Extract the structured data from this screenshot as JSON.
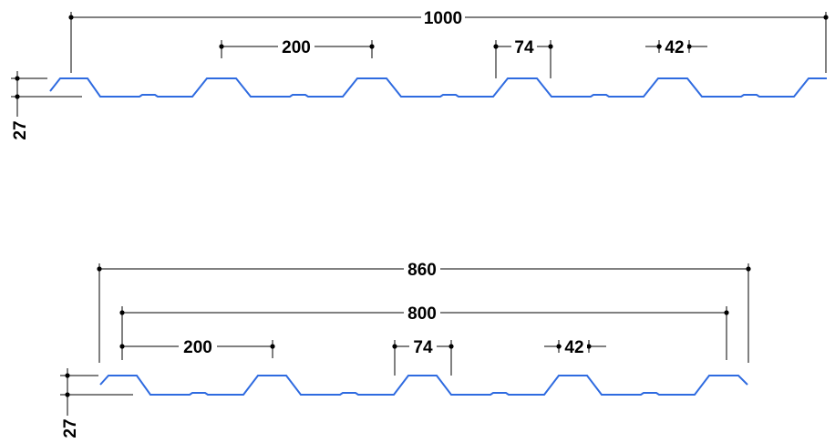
{
  "colors": {
    "profile": "#2f6be0",
    "dimension": "#000000",
    "background": "#ffffff"
  },
  "top_profile": {
    "overall_width": "1000",
    "pitch": "200",
    "crest_width": "74",
    "rib_width": "42",
    "height": "27"
  },
  "bottom_profile": {
    "overall_width": "860",
    "cover_width": "800",
    "pitch": "200",
    "crest_width": "74",
    "rib_width": "42",
    "height": "27"
  }
}
